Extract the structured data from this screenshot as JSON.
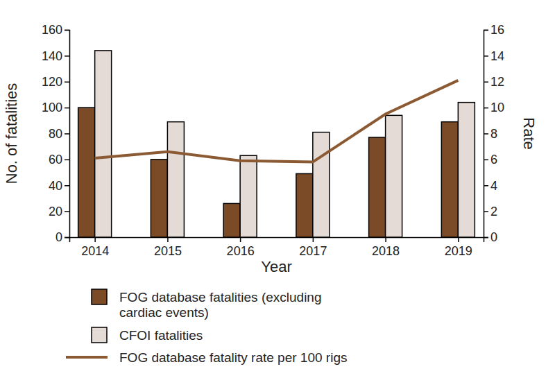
{
  "chart_data": {
    "type": "bar",
    "xlabel": "Year",
    "ylabel": "No. of fatalities",
    "y2label": "Rate",
    "categories": [
      "2014",
      "2015",
      "2016",
      "2017",
      "2018",
      "2019"
    ],
    "series": [
      {
        "name": "FOG database fatalities (excluding cardiac events)",
        "type": "bar",
        "color": "#7b4a26",
        "values": [
          100,
          60,
          26,
          49,
          77,
          89
        ]
      },
      {
        "name": "CFOI fatalities",
        "type": "bar",
        "color": "#e4dad6",
        "values": [
          144,
          89,
          63,
          81,
          94,
          104
        ]
      },
      {
        "name": "FOG database fatality rate per 100 rigs",
        "type": "line",
        "axis": "y2",
        "color": "#8c5a32",
        "values": [
          6.1,
          6.6,
          5.9,
          5.8,
          9.5,
          12.1
        ]
      }
    ],
    "ylim": [
      0,
      160
    ],
    "yticks": [
      0,
      20,
      40,
      60,
      80,
      100,
      120,
      140,
      160
    ],
    "y2lim": [
      0,
      16
    ],
    "y2ticks": [
      0,
      2,
      4,
      6,
      8,
      10,
      12,
      14,
      16
    ],
    "grid": false,
    "legend": "bottom"
  }
}
